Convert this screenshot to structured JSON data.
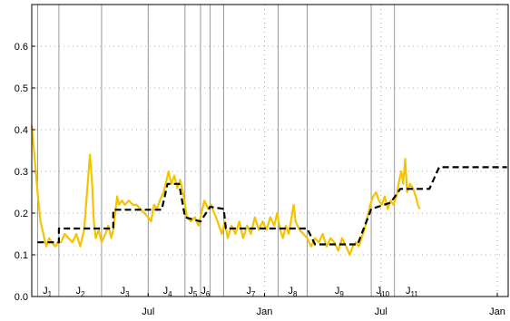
{
  "chart_data": {
    "type": "line",
    "title": "",
    "xlabel": "",
    "ylabel": "",
    "x_domain": [
      0,
      24
    ],
    "ylim": [
      0,
      0.7
    ],
    "grid": true,
    "colors": {
      "observed": "#f5c400",
      "fitted": "#000000",
      "separator": "#808080"
    },
    "x_ticks": [
      {
        "x": 6,
        "label": "Jul"
      },
      {
        "x": 12,
        "label": "Jan"
      },
      {
        "x": 18,
        "label": "Jul"
      },
      {
        "x": 24,
        "label": "Jan"
      }
    ],
    "y_ticks": [
      0.0,
      0.1,
      0.2,
      0.3,
      0.4,
      0.5,
      0.6
    ],
    "y_tick_labels": [
      "0.0",
      "0.1",
      "0.2",
      "0.3",
      "0.4",
      "0.5",
      "0.6"
    ],
    "separators": [
      0.3,
      1.4,
      3.6,
      6.0,
      7.9,
      8.7,
      9.2,
      9.9,
      12.7,
      14.2,
      17.5,
      18.7
    ],
    "segments": [
      {
        "main": "J",
        "sub": "1",
        "x": 0.8
      },
      {
        "main": "J",
        "sub": "2",
        "x": 2.5
      },
      {
        "main": "J",
        "sub": "3",
        "x": 4.8
      },
      {
        "main": "J",
        "sub": "4",
        "x": 7.0
      },
      {
        "main": "J",
        "sub": "5",
        "x": 8.3
      },
      {
        "main": "J",
        "sub": "6",
        "x": 8.95
      },
      {
        "main": "J",
        "sub": "7",
        "x": 11.3
      },
      {
        "main": "J",
        "sub": "8",
        "x": 13.45
      },
      {
        "main": "J",
        "sub": "9",
        "x": 15.85
      },
      {
        "main": "J",
        "sub": "10",
        "x": 18.1
      },
      {
        "main": "J",
        "sub": "11",
        "x": 19.6
      }
    ],
    "series": [
      {
        "name": "",
        "style": "solid",
        "points": [
          [
            0.0,
            0.41
          ],
          [
            0.15,
            0.33
          ],
          [
            0.3,
            0.25
          ],
          [
            0.45,
            0.18
          ],
          [
            0.6,
            0.15
          ],
          [
            0.75,
            0.12
          ],
          [
            0.9,
            0.14
          ],
          [
            1.05,
            0.13
          ],
          [
            1.2,
            0.12
          ],
          [
            1.35,
            0.13
          ],
          [
            1.5,
            0.13
          ],
          [
            1.7,
            0.15
          ],
          [
            1.9,
            0.14
          ],
          [
            2.1,
            0.13
          ],
          [
            2.3,
            0.15
          ],
          [
            2.5,
            0.12
          ],
          [
            2.7,
            0.16
          ],
          [
            2.85,
            0.25
          ],
          [
            3.0,
            0.34
          ],
          [
            3.1,
            0.28
          ],
          [
            3.2,
            0.18
          ],
          [
            3.3,
            0.14
          ],
          [
            3.45,
            0.16
          ],
          [
            3.6,
            0.13
          ],
          [
            3.8,
            0.15
          ],
          [
            3.95,
            0.17
          ],
          [
            4.1,
            0.14
          ],
          [
            4.2,
            0.16
          ],
          [
            4.3,
            0.2
          ],
          [
            4.4,
            0.24
          ],
          [
            4.5,
            0.22
          ],
          [
            4.65,
            0.23
          ],
          [
            4.8,
            0.22
          ],
          [
            5.0,
            0.23
          ],
          [
            5.2,
            0.22
          ],
          [
            5.4,
            0.22
          ],
          [
            5.6,
            0.21
          ],
          [
            5.8,
            0.2
          ],
          [
            6.0,
            0.19
          ],
          [
            6.15,
            0.18
          ],
          [
            6.3,
            0.22
          ],
          [
            6.45,
            0.21
          ],
          [
            6.6,
            0.23
          ],
          [
            6.8,
            0.25
          ],
          [
            6.95,
            0.28
          ],
          [
            7.05,
            0.3
          ],
          [
            7.2,
            0.27
          ],
          [
            7.35,
            0.29
          ],
          [
            7.5,
            0.26
          ],
          [
            7.65,
            0.28
          ],
          [
            7.8,
            0.25
          ],
          [
            7.9,
            0.22
          ],
          [
            8.0,
            0.19
          ],
          [
            8.2,
            0.18
          ],
          [
            8.4,
            0.19
          ],
          [
            8.6,
            0.17
          ],
          [
            8.75,
            0.2
          ],
          [
            8.9,
            0.23
          ],
          [
            9.1,
            0.21
          ],
          [
            9.25,
            0.22
          ],
          [
            9.4,
            0.2
          ],
          [
            9.5,
            0.19
          ],
          [
            9.65,
            0.17
          ],
          [
            9.8,
            0.15
          ],
          [
            9.95,
            0.18
          ],
          [
            10.1,
            0.14
          ],
          [
            10.3,
            0.17
          ],
          [
            10.5,
            0.15
          ],
          [
            10.7,
            0.18
          ],
          [
            10.9,
            0.14
          ],
          [
            11.1,
            0.17
          ],
          [
            11.3,
            0.15
          ],
          [
            11.5,
            0.19
          ],
          [
            11.7,
            0.16
          ],
          [
            11.9,
            0.18
          ],
          [
            12.1,
            0.16
          ],
          [
            12.3,
            0.19
          ],
          [
            12.5,
            0.17
          ],
          [
            12.65,
            0.2
          ],
          [
            12.8,
            0.16
          ],
          [
            12.95,
            0.14
          ],
          [
            13.1,
            0.17
          ],
          [
            13.25,
            0.15
          ],
          [
            13.4,
            0.19
          ],
          [
            13.5,
            0.22
          ],
          [
            13.6,
            0.18
          ],
          [
            13.8,
            0.16
          ],
          [
            14.0,
            0.15
          ],
          [
            14.2,
            0.14
          ],
          [
            14.4,
            0.12
          ],
          [
            14.6,
            0.14
          ],
          [
            14.8,
            0.13
          ],
          [
            15.0,
            0.15
          ],
          [
            15.2,
            0.12
          ],
          [
            15.4,
            0.14
          ],
          [
            15.6,
            0.13
          ],
          [
            15.8,
            0.11
          ],
          [
            16.0,
            0.14
          ],
          [
            16.2,
            0.12
          ],
          [
            16.4,
            0.1
          ],
          [
            16.55,
            0.12
          ],
          [
            16.7,
            0.13
          ],
          [
            16.85,
            0.12
          ],
          [
            17.0,
            0.14
          ],
          [
            17.15,
            0.16
          ],
          [
            17.3,
            0.19
          ],
          [
            17.45,
            0.22
          ],
          [
            17.6,
            0.24
          ],
          [
            17.75,
            0.25
          ],
          [
            17.9,
            0.23
          ],
          [
            18.05,
            0.22
          ],
          [
            18.2,
            0.24
          ],
          [
            18.35,
            0.21
          ],
          [
            18.5,
            0.23
          ],
          [
            18.65,
            0.22
          ],
          [
            18.8,
            0.24
          ],
          [
            18.95,
            0.28
          ],
          [
            19.05,
            0.3
          ],
          [
            19.15,
            0.27
          ],
          [
            19.25,
            0.33
          ],
          [
            19.35,
            0.25
          ],
          [
            19.5,
            0.27
          ],
          [
            19.65,
            0.26
          ],
          [
            19.8,
            0.24
          ],
          [
            19.9,
            0.22
          ],
          [
            20.0,
            0.21
          ]
        ]
      },
      {
        "name": "",
        "style": "dashed",
        "points": [
          [
            0.3,
            0.13
          ],
          [
            1.4,
            0.13
          ],
          [
            1.4,
            0.163
          ],
          [
            3.6,
            0.163
          ],
          [
            3.6,
            0.163
          ],
          [
            4.2,
            0.163
          ],
          [
            4.2,
            0.208
          ],
          [
            6.7,
            0.208
          ],
          [
            7.0,
            0.27
          ],
          [
            7.6,
            0.27
          ],
          [
            7.9,
            0.19
          ],
          [
            8.7,
            0.18
          ],
          [
            9.2,
            0.215
          ],
          [
            9.9,
            0.21
          ],
          [
            10.0,
            0.163
          ],
          [
            14.2,
            0.163
          ],
          [
            14.6,
            0.125
          ],
          [
            16.8,
            0.125
          ],
          [
            17.5,
            0.21
          ],
          [
            18.5,
            0.225
          ],
          [
            19.0,
            0.258
          ],
          [
            20.5,
            0.258
          ],
          [
            21.0,
            0.31
          ],
          [
            24.5,
            0.31
          ]
        ]
      }
    ]
  }
}
